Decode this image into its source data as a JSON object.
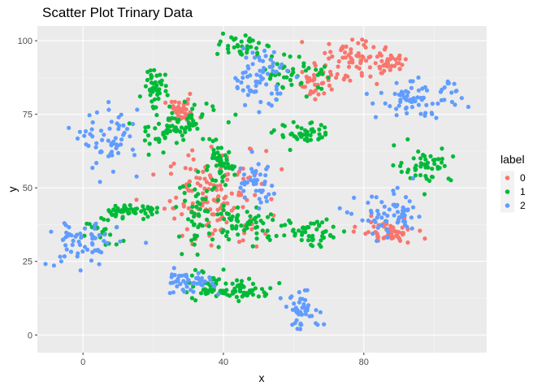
{
  "chart_data": {
    "type": "scatter",
    "title": "Scatter Plot Trinary Data",
    "xlabel": "x",
    "ylabel": "y",
    "xlim": [
      -13,
      115
    ],
    "ylim": [
      -6,
      105
    ],
    "xticks": [
      0,
      40,
      80
    ],
    "yticks": [
      0,
      25,
      50,
      75,
      100
    ],
    "grid": true,
    "legend": {
      "title": "label",
      "position": "right"
    },
    "series": [
      {
        "name": "0",
        "color": "#F8766D",
        "clusters": [
          {
            "cx": 28,
            "cy": 76,
            "sx": 2.5,
            "sy": 2,
            "n": 40
          },
          {
            "cx": 38,
            "cy": 47,
            "sx": 7,
            "sy": 8,
            "n": 140
          },
          {
            "cx": 66,
            "cy": 86,
            "sx": 2.5,
            "sy": 3,
            "n": 28
          },
          {
            "cx": 76,
            "cy": 93,
            "sx": 5,
            "sy": 4,
            "n": 80
          },
          {
            "cx": 88,
            "cy": 92,
            "sx": 2,
            "sy": 1.5,
            "n": 25
          },
          {
            "cx": 87,
            "cy": 35,
            "sx": 4,
            "sy": 2,
            "n": 60
          }
        ]
      },
      {
        "name": "1",
        "color": "#00BA38",
        "clusters": [
          {
            "cx": 20,
            "cy": 85,
            "sx": 1.5,
            "sy": 3,
            "n": 40
          },
          {
            "cx": 26,
            "cy": 71,
            "sx": 6,
            "sy": 4,
            "n": 80
          },
          {
            "cx": 45,
            "cy": 98,
            "sx": 3,
            "sy": 2,
            "n": 35
          },
          {
            "cx": 61,
            "cy": 89,
            "sx": 5,
            "sy": 3,
            "n": 45
          },
          {
            "cx": 63,
            "cy": 68,
            "sx": 4,
            "sy": 2,
            "n": 45
          },
          {
            "cx": 39,
            "cy": 58,
            "sx": 2,
            "sy": 3,
            "n": 50
          },
          {
            "cx": 13,
            "cy": 42,
            "sx": 4,
            "sy": 1,
            "n": 55
          },
          {
            "cx": 33,
            "cy": 42,
            "sx": 3,
            "sy": 6,
            "n": 50
          },
          {
            "cx": 46,
            "cy": 38,
            "sx": 6,
            "sy": 3,
            "n": 60
          },
          {
            "cx": 66,
            "cy": 35,
            "sx": 5,
            "sy": 2.5,
            "n": 50
          },
          {
            "cx": 97,
            "cy": 58,
            "sx": 4,
            "sy": 3,
            "n": 50
          },
          {
            "cx": 36,
            "cy": 17,
            "sx": 3,
            "sy": 3,
            "n": 40
          },
          {
            "cx": 46,
            "cy": 15,
            "sx": 4,
            "sy": 1.5,
            "n": 55
          },
          {
            "cx": 5,
            "cy": 35,
            "sx": 3,
            "sy": 3,
            "n": 25
          }
        ]
      },
      {
        "name": "2",
        "color": "#619CFF",
        "clusters": [
          {
            "cx": 8,
            "cy": 66,
            "sx": 4,
            "sy": 5,
            "n": 60
          },
          {
            "cx": 50,
            "cy": 88,
            "sx": 4,
            "sy": 5,
            "n": 70
          },
          {
            "cx": 96,
            "cy": 80,
            "sx": 6,
            "sy": 3,
            "n": 75
          },
          {
            "cx": 49,
            "cy": 51,
            "sx": 3,
            "sy": 4,
            "n": 40
          },
          {
            "cx": 88,
            "cy": 40,
            "sx": 5,
            "sy": 4,
            "n": 65
          },
          {
            "cx": 0,
            "cy": 31,
            "sx": 5,
            "sy": 4,
            "n": 60
          },
          {
            "cx": 29,
            "cy": 18,
            "sx": 4,
            "sy": 2,
            "n": 45
          },
          {
            "cx": 63,
            "cy": 8,
            "sx": 3,
            "sy": 3,
            "n": 45
          }
        ]
      }
    ]
  }
}
